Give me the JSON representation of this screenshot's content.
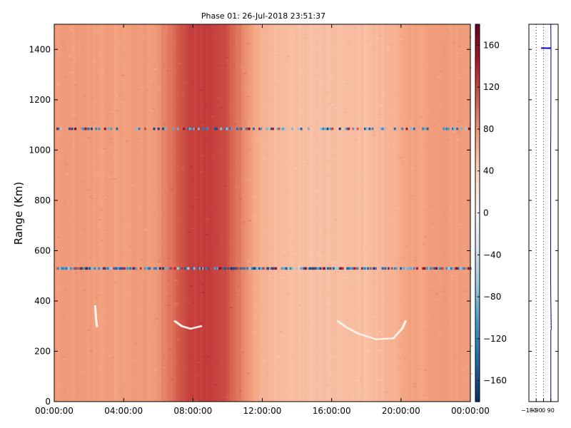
{
  "chart_data": [
    {
      "type": "heatmap",
      "title": "Phase 01: 26-Jul-2018 23:51:37",
      "xlabel": "",
      "ylabel": "Range (Km)",
      "x_tick_labels": [
        "00:00:00",
        "04:00:00",
        "08:00:00",
        "12:00:00",
        "16:00:00",
        "20:00:00",
        "00:00:00"
      ],
      "x_ticks_hours": [
        0,
        4,
        8,
        12,
        16,
        20,
        24
      ],
      "xlim_hours": [
        0,
        24
      ],
      "y_ticks": [
        0,
        200,
        400,
        600,
        800,
        1000,
        1200,
        1400
      ],
      "ylim": [
        0,
        1500
      ],
      "colormap": "RdBu_r",
      "value_range": [
        -180,
        180
      ],
      "colorbar_ticks": [
        160,
        120,
        80,
        40,
        0,
        -40,
        -80,
        -120,
        -160
      ],
      "background_phase_by_hour": [
        [
          0,
          76
        ],
        [
          1,
          76
        ],
        [
          2,
          76
        ],
        [
          3,
          75
        ],
        [
          4,
          75
        ],
        [
          5,
          76
        ],
        [
          6,
          80
        ],
        [
          6.5,
          92
        ],
        [
          7,
          104
        ],
        [
          7.5,
          118
        ],
        [
          8,
          124
        ],
        [
          8.5,
          126
        ],
        [
          9,
          126
        ],
        [
          9.5,
          122
        ],
        [
          10,
          114
        ],
        [
          10.5,
          100
        ],
        [
          11,
          86
        ],
        [
          11.5,
          72
        ],
        [
          12,
          62
        ],
        [
          13,
          58
        ],
        [
          14,
          55
        ],
        [
          15,
          54
        ],
        [
          16,
          54
        ],
        [
          17,
          55
        ],
        [
          18,
          56
        ],
        [
          19,
          60
        ],
        [
          20,
          68
        ],
        [
          21,
          74
        ],
        [
          22,
          76
        ],
        [
          23,
          76
        ],
        [
          24,
          76
        ]
      ],
      "noisy_range_bands_km": [
        530,
        1085
      ]
    },
    {
      "type": "line",
      "title": "",
      "xlabel": "",
      "ylabel": "",
      "x_tick_labels": [
        "-180",
        "-90",
        "0",
        "90"
      ],
      "x_ticks": [
        -180,
        -90,
        0,
        90
      ],
      "xlim": [
        -180,
        180
      ],
      "ylim": [
        0,
        1500
      ],
      "grid": "vertical dotted",
      "series": [
        {
          "color": "#0000cc",
          "x": [
            90,
            90,
            95,
            90,
            88,
            88,
            90,
            92,
            90
          ],
          "y": [
            0,
            280,
            290,
            400,
            470,
            1000,
            1085,
            1400,
            1500
          ]
        }
      ],
      "marker_line": {
        "y": 1405,
        "x_from": -30,
        "x_to": 90,
        "color": "#0000cc"
      }
    }
  ]
}
